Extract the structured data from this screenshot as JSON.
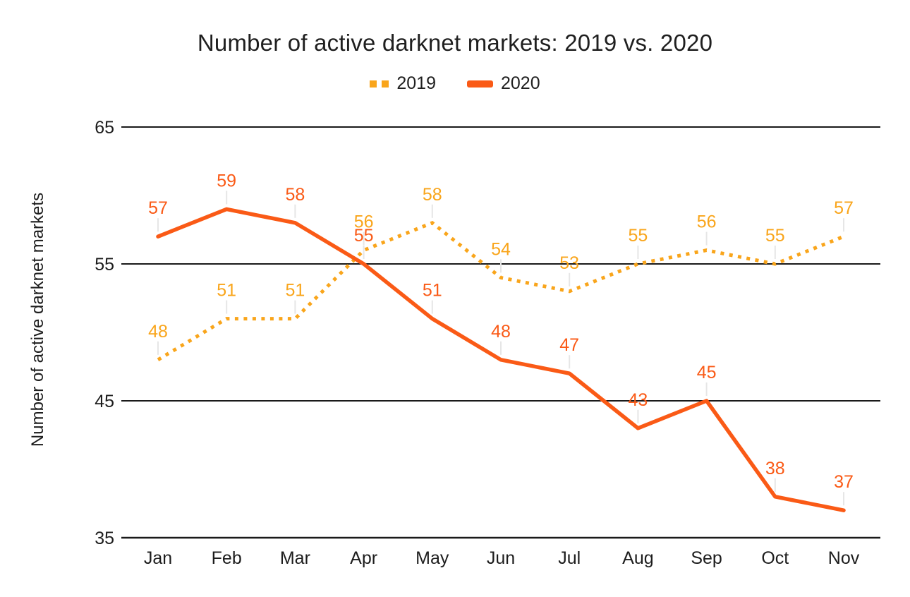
{
  "title": "Number of active darknet markets: 2019 vs. 2020",
  "colors": {
    "series_2019": "#F9A51B",
    "series_2020": "#FA5A16",
    "grid": "#1a1a1a",
    "axis_text": "#1d1d1d",
    "title_text": "#1f1f1f",
    "connector": "#e6e6e6",
    "background": "#ffffff"
  },
  "chart_data": {
    "type": "line",
    "title": "Number of active darknet markets: 2019 vs. 2020",
    "xlabel": "",
    "ylabel": "Number of active darknet markets",
    "categories": [
      "Jan",
      "Feb",
      "Mar",
      "Apr",
      "May",
      "Jun",
      "Jul",
      "Aug",
      "Sep",
      "Oct",
      "Nov"
    ],
    "yticks": [
      65,
      55,
      45,
      35
    ],
    "ylim": [
      35,
      65
    ],
    "grid": "horizontal",
    "legend_position": "top",
    "value_labels_shown": true,
    "series": [
      {
        "name": "2019",
        "style": "dotted",
        "color": "#F9A51B",
        "values": [
          48,
          51,
          51,
          56,
          58,
          54,
          53,
          55,
          56,
          55,
          57
        ]
      },
      {
        "name": "2020",
        "style": "solid",
        "color": "#FA5A16",
        "values": [
          57,
          59,
          58,
          55,
          51,
          48,
          47,
          43,
          45,
          38,
          37
        ]
      }
    ]
  }
}
